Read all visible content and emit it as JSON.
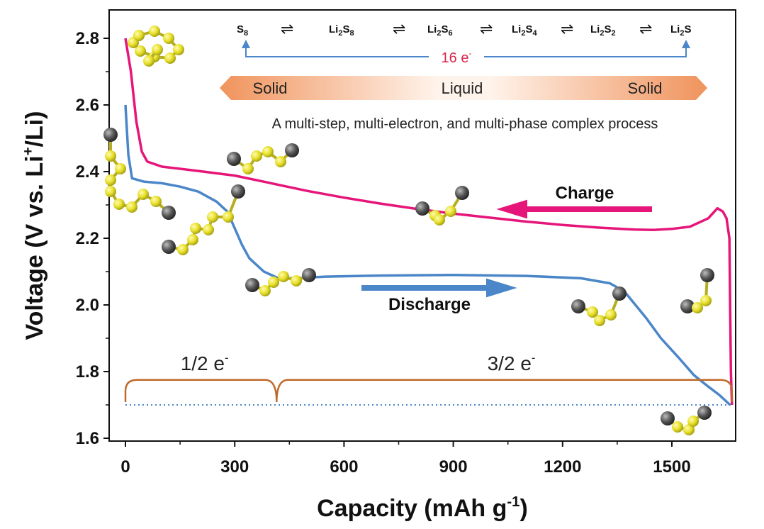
{
  "chart_data": {
    "type": "line",
    "xlabel": "Capacity (mAh g",
    "xlabel_sup": "-1",
    "xlabel_end": ")",
    "ylabel": "Voltage (V vs. Li",
    "ylabel_sup": "+",
    "ylabel_end": "/Li)",
    "xlim": [
      -30,
      1700
    ],
    "ylim": [
      1.6,
      2.86
    ],
    "x_ticks": [
      "0",
      "300",
      "600",
      "900",
      "1200",
      "1500"
    ],
    "x_tick_values": [
      0,
      300,
      600,
      900,
      1200,
      1500
    ],
    "y_ticks": [
      "1.6",
      "1.8",
      "2.0",
      "2.2",
      "2.4",
      "2.6",
      "2.8"
    ],
    "y_tick_values": [
      1.6,
      1.8,
      2.0,
      2.2,
      2.4,
      2.6,
      2.8
    ],
    "grid": false,
    "series": [
      {
        "name": "Charge",
        "color": "#e6157a",
        "x": [
          1665,
          1662,
          1660,
          1658,
          1650,
          1640,
          1625,
          1600,
          1550,
          1500,
          1450,
          1400,
          1300,
          1200,
          1100,
          1000,
          900,
          800,
          700,
          600,
          500,
          400,
          300,
          200,
          100,
          60,
          45,
          30,
          15,
          0
        ],
        "y": [
          1.7,
          1.8,
          2.0,
          2.2,
          2.26,
          2.28,
          2.29,
          2.26,
          2.235,
          2.228,
          2.225,
          2.226,
          2.232,
          2.24,
          2.25,
          2.262,
          2.274,
          2.288,
          2.304,
          2.322,
          2.342,
          2.365,
          2.388,
          2.402,
          2.415,
          2.43,
          2.46,
          2.55,
          2.7,
          2.8
        ]
      },
      {
        "name": "Discharge",
        "color": "#4a86c8",
        "x": [
          0,
          8,
          18,
          50,
          100,
          150,
          200,
          250,
          280,
          300,
          320,
          340,
          380,
          420,
          460,
          550,
          700,
          900,
          1100,
          1250,
          1330,
          1370,
          1400,
          1430,
          1470,
          1520,
          1560,
          1600,
          1630,
          1660
        ],
        "y": [
          2.6,
          2.45,
          2.38,
          2.37,
          2.365,
          2.355,
          2.34,
          2.31,
          2.28,
          2.23,
          2.18,
          2.14,
          2.1,
          2.08,
          2.08,
          2.085,
          2.088,
          2.09,
          2.087,
          2.08,
          2.065,
          2.04,
          2.0,
          1.96,
          1.9,
          1.84,
          1.79,
          1.755,
          1.73,
          1.7
        ]
      }
    ],
    "cutoff_voltage": 1.7,
    "reaction_species": [
      {
        "base": "S",
        "sub": "8",
        "tail": ""
      },
      {
        "base": "Li",
        "sub": "2",
        "tail": "S",
        "sub2": "8"
      },
      {
        "base": "Li",
        "sub": "2",
        "tail": "S",
        "sub2": "6"
      },
      {
        "base": "Li",
        "sub": "2",
        "tail": "S",
        "sub2": "4"
      },
      {
        "base": "Li",
        "sub": "2",
        "tail": "S",
        "sub2": "2"
      },
      {
        "base": "Li",
        "sub": "2",
        "tail": "S",
        "sub2": ""
      }
    ],
    "equilibrium_symbol": "⇌",
    "electron_count": "16 e",
    "electron_sup": "-",
    "phase_left": "Solid",
    "phase_mid": "Liquid",
    "phase_right": "Solid",
    "caption": "A multi-step, multi-electron, and multi-phase complex process",
    "charge_label": "Charge",
    "discharge_label": "Discharge",
    "stage1_label": "1/2 e",
    "stage1_sup": "-",
    "stage2_label": "3/2 e",
    "stage2_sup": "-",
    "stage_boundary_x": 415,
    "stage_start_x": 0,
    "stage_end_x": 1665,
    "colors": {
      "charge": "#e6157a",
      "discharge": "#4a86c8",
      "brace": "#c06a2a",
      "phase_solid": "#f0935c",
      "electron_arrow": "#4a86c8",
      "sulfur_atom": "#e8e02a",
      "lithium_atom": "#555555"
    }
  }
}
